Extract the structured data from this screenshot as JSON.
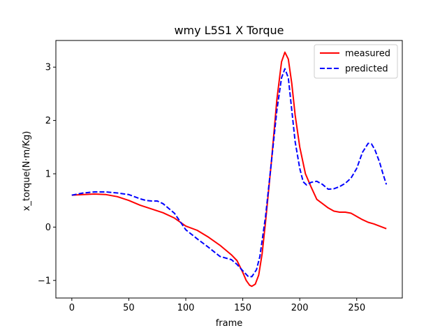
{
  "chart_data": {
    "type": "line",
    "title": "wmy L5S1 X Torque",
    "xlabel": "frame",
    "ylabel": "x_torque(N·m/Kg)",
    "xlim": [
      -14,
      290
    ],
    "ylim": [
      -1.33,
      3.5
    ],
    "xticks": [
      0,
      50,
      100,
      150,
      200,
      250
    ],
    "yticks": [
      -1,
      0,
      1,
      2,
      3
    ],
    "xtick_labels": [
      "0",
      "50",
      "100",
      "150",
      "200",
      "250"
    ],
    "ytick_labels": [
      "−1",
      "0",
      "1",
      "2",
      "3"
    ],
    "grid": false,
    "legend_position": "upper right",
    "series": [
      {
        "name": "measured",
        "color": "#ff0000",
        "style": "solid",
        "points": [
          [
            0,
            0.6
          ],
          [
            10,
            0.61
          ],
          [
            20,
            0.62
          ],
          [
            30,
            0.61
          ],
          [
            40,
            0.57
          ],
          [
            50,
            0.5
          ],
          [
            60,
            0.41
          ],
          [
            70,
            0.34
          ],
          [
            80,
            0.27
          ],
          [
            90,
            0.17
          ],
          [
            100,
            0.02
          ],
          [
            110,
            -0.06
          ],
          [
            120,
            -0.19
          ],
          [
            130,
            -0.34
          ],
          [
            140,
            -0.52
          ],
          [
            145,
            -0.63
          ],
          [
            150,
            -0.85
          ],
          [
            153,
            -1.0
          ],
          [
            156,
            -1.09
          ],
          [
            158,
            -1.11
          ],
          [
            161,
            -1.07
          ],
          [
            164,
            -0.9
          ],
          [
            167,
            -0.5
          ],
          [
            170,
            0.1
          ],
          [
            175,
            1.2
          ],
          [
            180,
            2.4
          ],
          [
            184,
            3.1
          ],
          [
            187,
            3.28
          ],
          [
            190,
            3.15
          ],
          [
            193,
            2.7
          ],
          [
            196,
            2.1
          ],
          [
            200,
            1.5
          ],
          [
            205,
            1.0
          ],
          [
            210,
            0.75
          ],
          [
            215,
            0.52
          ],
          [
            220,
            0.44
          ],
          [
            225,
            0.36
          ],
          [
            230,
            0.3
          ],
          [
            235,
            0.28
          ],
          [
            240,
            0.28
          ],
          [
            245,
            0.26
          ],
          [
            250,
            0.2
          ],
          [
            255,
            0.14
          ],
          [
            260,
            0.09
          ],
          [
            265,
            0.06
          ],
          [
            270,
            0.02
          ],
          [
            276,
            -0.03
          ]
        ]
      },
      {
        "name": "predicted",
        "color": "#0000ff",
        "style": "dashed",
        "points": [
          [
            0,
            0.6
          ],
          [
            10,
            0.64
          ],
          [
            20,
            0.66
          ],
          [
            30,
            0.66
          ],
          [
            40,
            0.64
          ],
          [
            50,
            0.61
          ],
          [
            60,
            0.53
          ],
          [
            65,
            0.5
          ],
          [
            70,
            0.49
          ],
          [
            75,
            0.49
          ],
          [
            80,
            0.44
          ],
          [
            90,
            0.26
          ],
          [
            100,
            -0.05
          ],
          [
            110,
            -0.22
          ],
          [
            120,
            -0.38
          ],
          [
            130,
            -0.55
          ],
          [
            140,
            -0.61
          ],
          [
            145,
            -0.7
          ],
          [
            150,
            -0.82
          ],
          [
            155,
            -0.93
          ],
          [
            158,
            -0.93
          ],
          [
            162,
            -0.8
          ],
          [
            165,
            -0.55
          ],
          [
            170,
            0.2
          ],
          [
            175,
            1.2
          ],
          [
            180,
            2.2
          ],
          [
            184,
            2.8
          ],
          [
            187,
            2.97
          ],
          [
            190,
            2.8
          ],
          [
            193,
            2.2
          ],
          [
            196,
            1.6
          ],
          [
            200,
            1.1
          ],
          [
            203,
            0.85
          ],
          [
            206,
            0.79
          ],
          [
            210,
            0.84
          ],
          [
            215,
            0.86
          ],
          [
            220,
            0.8
          ],
          [
            225,
            0.71
          ],
          [
            230,
            0.72
          ],
          [
            235,
            0.76
          ],
          [
            240,
            0.82
          ],
          [
            245,
            0.92
          ],
          [
            250,
            1.1
          ],
          [
            255,
            1.4
          ],
          [
            260,
            1.57
          ],
          [
            263,
            1.56
          ],
          [
            266,
            1.45
          ],
          [
            270,
            1.22
          ],
          [
            273,
            1.0
          ],
          [
            276,
            0.8
          ]
        ]
      }
    ]
  }
}
